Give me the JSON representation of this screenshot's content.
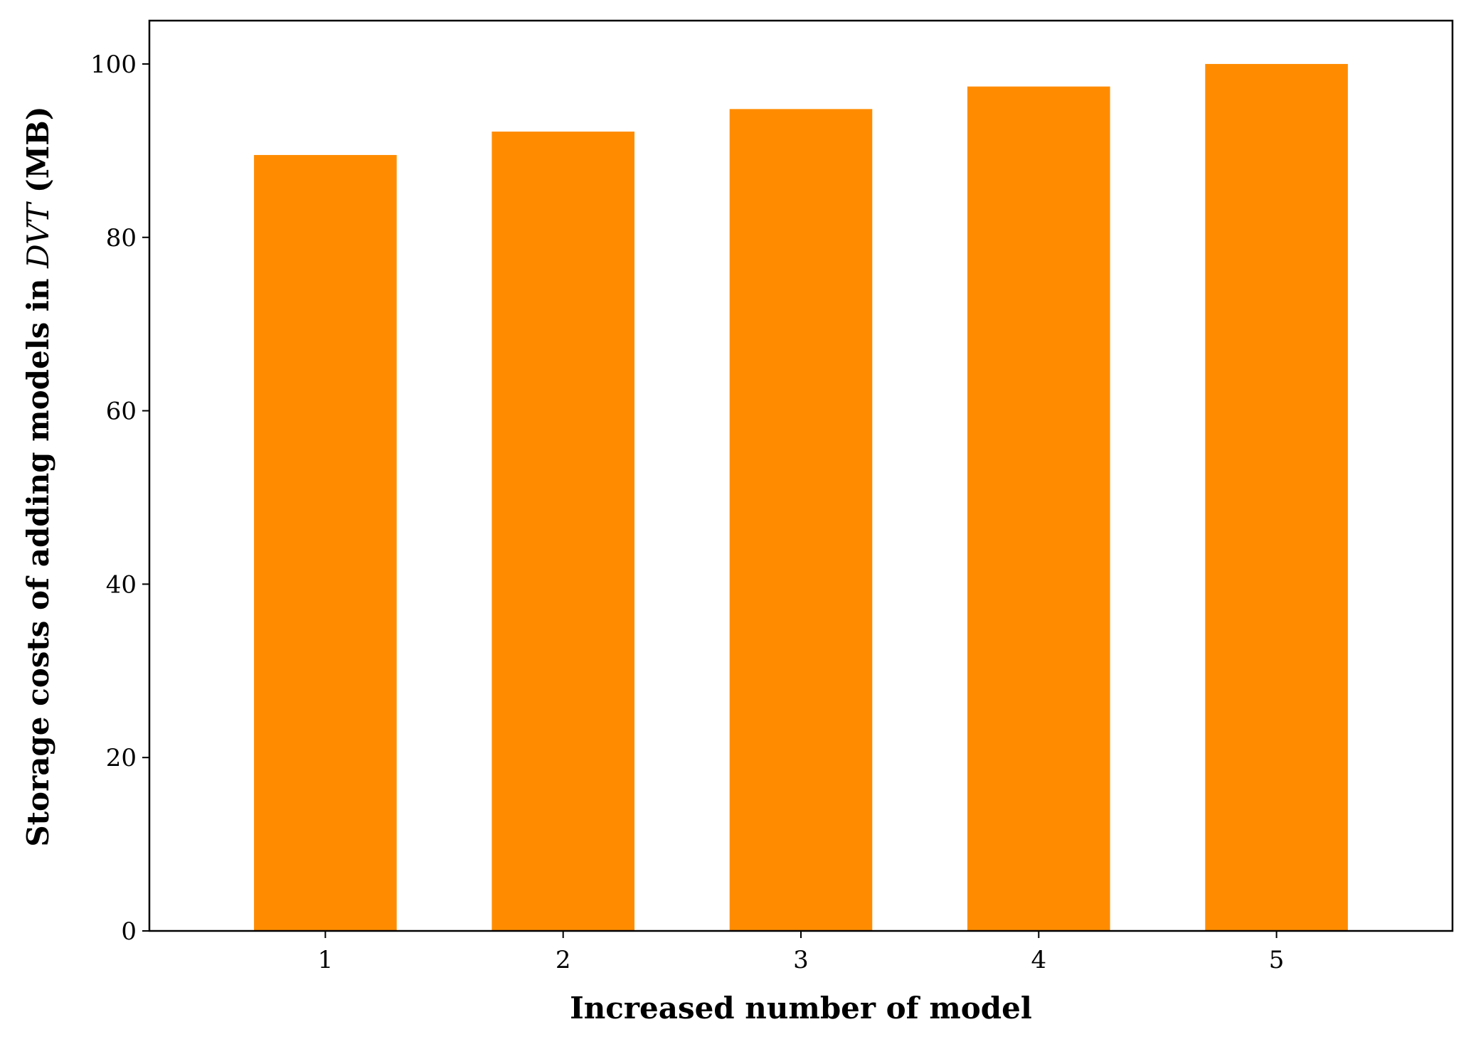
{
  "chart_data": {
    "type": "bar",
    "categories": [
      "1",
      "2",
      "3",
      "4",
      "5"
    ],
    "values": [
      89.5,
      92.2,
      94.8,
      97.4,
      100.0
    ],
    "bar_color": "#ff8c00",
    "xlabel": "Increased number of model",
    "ylabel_prefix": "Storage costs of adding models in ",
    "ylabel_math": "DVT",
    "ylabel_suffix": " (MB)",
    "yticks": [
      0,
      20,
      40,
      60,
      80,
      100
    ],
    "ylim": [
      0,
      105
    ],
    "grid": false,
    "legend": "none"
  }
}
